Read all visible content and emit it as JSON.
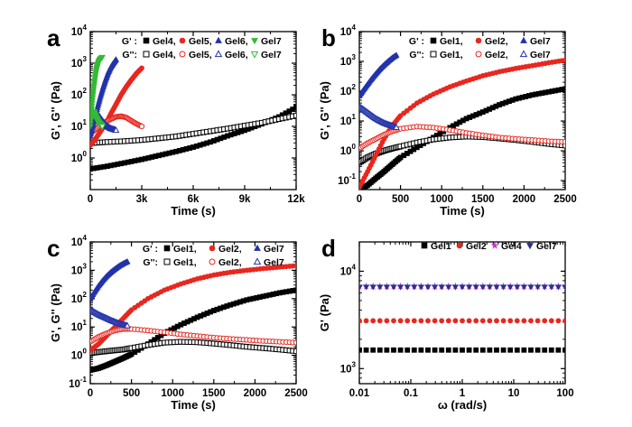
{
  "colors": {
    "black": "#000000",
    "red": "#e8271f",
    "blue": "#2233aa",
    "green": "#33bb33",
    "magenta": "#cc33cc",
    "navy": "#283090"
  },
  "chart_data": [
    {
      "id": "a",
      "type": "scatter",
      "panel_label": "a",
      "xlabel": "Time (s)",
      "ylabel": "G', G'' (Pa)",
      "xscale": "linear",
      "yscale": "log",
      "xlim": [
        0,
        12000
      ],
      "ylim": [
        0.1,
        10000
      ],
      "xticks": [
        {
          "v": 0,
          "label": "0"
        },
        {
          "v": 3000,
          "label": "3k"
        },
        {
          "v": 6000,
          "label": "6k"
        },
        {
          "v": 9000,
          "label": "9k"
        },
        {
          "v": 12000,
          "label": "12k"
        }
      ],
      "ytick_exponents": [
        0,
        1,
        2,
        3,
        4
      ],
      "legend_rows": [
        {
          "label": "G' :",
          "entries": [
            "Gel4,",
            "Gel5,",
            "Gel6,",
            "Gel7"
          ]
        },
        {
          "label": "G'':",
          "entries": [
            "Gel4,",
            "Gel5,",
            "Gel6,",
            "Gel7"
          ]
        }
      ],
      "series": [
        {
          "name": "Gel4",
          "modulus": "G'",
          "marker": "square",
          "filled": true,
          "color": "black",
          "x": [
            0,
            1000,
            2000,
            3000,
            4000,
            5000,
            6000,
            7000,
            8000,
            9000,
            10000,
            11000,
            12000
          ],
          "y": [
            0.45,
            0.55,
            0.7,
            0.9,
            1.2,
            1.6,
            2.2,
            3.2,
            5,
            7.5,
            12,
            20,
            40
          ]
        },
        {
          "name": "Gel4",
          "modulus": "G''",
          "marker": "square",
          "filled": false,
          "color": "black",
          "x": [
            200,
            1000,
            2000,
            3000,
            4000,
            5000,
            6000,
            7000,
            8000,
            9000,
            10000,
            11000,
            12000
          ],
          "y": [
            3.0,
            3.2,
            3.4,
            3.7,
            4.2,
            4.8,
            5.8,
            7,
            8.5,
            10.5,
            13,
            17,
            22
          ]
        },
        {
          "name": "Gel5",
          "modulus": "G'",
          "marker": "circle",
          "filled": true,
          "color": "red",
          "x": [
            0,
            300,
            600,
            900,
            1200,
            1500,
            1800,
            2100,
            2400,
            2700,
            3000
          ],
          "y": [
            2.5,
            4,
            7,
            12,
            25,
            50,
            100,
            180,
            300,
            480,
            700
          ]
        },
        {
          "name": "Gel5",
          "modulus": "G''",
          "marker": "circle",
          "filled": false,
          "color": "red",
          "x": [
            0,
            300,
            600,
            900,
            1200,
            1500,
            1800,
            2100,
            2400,
            2700,
            3000
          ],
          "y": [
            6,
            8,
            11,
            14,
            17,
            20,
            21,
            19,
            15,
            12,
            10
          ]
        },
        {
          "name": "Gel6",
          "modulus": "G'",
          "marker": "triangle-up",
          "filled": true,
          "color": "blue",
          "x": [
            0,
            150,
            300,
            450,
            600,
            750,
            900,
            1050,
            1200,
            1350,
            1500
          ],
          "y": [
            5,
            10,
            22,
            45,
            90,
            170,
            300,
            500,
            750,
            1000,
            1300
          ]
        },
        {
          "name": "Gel6",
          "modulus": "G''",
          "marker": "triangle-up",
          "filled": false,
          "color": "blue",
          "x": [
            0,
            150,
            300,
            450,
            600,
            750,
            900,
            1050,
            1200,
            1350,
            1500
          ],
          "y": [
            20,
            25,
            28,
            24,
            18,
            14,
            11,
            9.5,
            8.5,
            8,
            7.5
          ]
        },
        {
          "name": "Gel7",
          "modulus": "G'",
          "marker": "triangle-down",
          "filled": true,
          "color": "green",
          "x": [
            0,
            70,
            140,
            210,
            280,
            350,
            420,
            490,
            560,
            630,
            700
          ],
          "y": [
            10,
            30,
            80,
            180,
            350,
            600,
            850,
            1100,
            1300,
            1450,
            1550
          ]
        },
        {
          "name": "Gel7",
          "modulus": "G''",
          "marker": "triangle-down",
          "filled": false,
          "color": "green",
          "x": [
            0,
            70,
            140,
            210,
            280,
            350,
            420,
            490,
            560,
            630,
            700
          ],
          "y": [
            15,
            22,
            30,
            28,
            22,
            18,
            15,
            13,
            12,
            11,
            10
          ]
        }
      ]
    },
    {
      "id": "b",
      "type": "scatter",
      "panel_label": "b",
      "xlabel": "Time (s)",
      "ylabel": "G', G'' (Pa)",
      "xscale": "linear",
      "yscale": "log",
      "xlim": [
        0,
        2500
      ],
      "ylim": [
        0.05,
        10000
      ],
      "xticks": [
        {
          "v": 0,
          "label": "0"
        },
        {
          "v": 500,
          "label": "500"
        },
        {
          "v": 1000,
          "label": "1000"
        },
        {
          "v": 1500,
          "label": "1500"
        },
        {
          "v": 2000,
          "label": "2000"
        },
        {
          "v": 2500,
          "label": "2500"
        }
      ],
      "ytick_exponents": [
        -1,
        0,
        1,
        2,
        3,
        4
      ],
      "legend_rows": [
        {
          "label": "G' :",
          "entries": [
            "Gel1,",
            "Gel2,",
            "Gel7"
          ]
        },
        {
          "label": "G'':",
          "entries": [
            "Gel1,",
            "Gel2,",
            "Gel7"
          ]
        }
      ],
      "series": [
        {
          "name": "Gel1",
          "modulus": "G'",
          "marker": "square",
          "filled": true,
          "color": "black",
          "x": [
            0,
            100,
            200,
            300,
            400,
            500,
            700,
            900,
            1100,
            1300,
            1500,
            1700,
            1900,
            2100,
            2300,
            2500
          ],
          "y": [
            0.05,
            0.07,
            0.12,
            0.2,
            0.35,
            0.6,
            1.3,
            2.8,
            6,
            12,
            20,
            35,
            55,
            75,
            95,
            120
          ]
        },
        {
          "name": "Gel1",
          "modulus": "G''",
          "marker": "square",
          "filled": false,
          "color": "black",
          "x": [
            0,
            100,
            200,
            300,
            400,
            500,
            700,
            900,
            1100,
            1300,
            1500,
            1700,
            1900,
            2100,
            2300,
            2500
          ],
          "y": [
            0.4,
            0.6,
            0.8,
            1.0,
            1.2,
            1.4,
            1.9,
            2.4,
            2.8,
            3.0,
            2.9,
            2.6,
            2.3,
            2.0,
            1.7,
            1.5
          ]
        },
        {
          "name": "Gel2",
          "modulus": "G'",
          "marker": "circle",
          "filled": true,
          "color": "red",
          "x": [
            0,
            100,
            200,
            300,
            400,
            500,
            700,
            900,
            1100,
            1300,
            1500,
            1700,
            1900,
            2100,
            2300,
            2500
          ],
          "y": [
            0.06,
            0.2,
            0.7,
            2.5,
            7,
            15,
            40,
            80,
            140,
            220,
            330,
            450,
            580,
            720,
            900,
            1100
          ]
        },
        {
          "name": "Gel2",
          "modulus": "G''",
          "marker": "circle",
          "filled": false,
          "color": "red",
          "x": [
            0,
            100,
            200,
            300,
            400,
            500,
            700,
            900,
            1100,
            1300,
            1500,
            1700,
            1900,
            2100,
            2300,
            2500
          ],
          "y": [
            1.2,
            1.8,
            2.5,
            3.5,
            4.5,
            5.5,
            6.5,
            6.0,
            5.0,
            4.0,
            3.3,
            2.8,
            2.5,
            2.3,
            2.1,
            2.0
          ]
        },
        {
          "name": "Gel7",
          "modulus": "G'",
          "marker": "triangle-up",
          "filled": true,
          "color": "blue",
          "x": [
            0,
            50,
            100,
            150,
            200,
            250,
            300,
            350,
            400,
            450
          ],
          "y": [
            70,
            110,
            170,
            260,
            380,
            550,
            750,
            1000,
            1300,
            1600
          ]
        },
        {
          "name": "Gel7",
          "modulus": "G''",
          "marker": "triangle-up",
          "filled": false,
          "color": "blue",
          "x": [
            0,
            50,
            100,
            150,
            200,
            250,
            300,
            350,
            400,
            450
          ],
          "y": [
            30,
            24,
            19,
            15,
            12,
            10,
            8.5,
            7.5,
            6.8,
            6
          ]
        }
      ]
    },
    {
      "id": "c",
      "type": "scatter",
      "panel_label": "c",
      "xlabel": "Time (s)",
      "ylabel": "G', G'' (Pa)",
      "xscale": "linear",
      "yscale": "log",
      "xlim": [
        0,
        2500
      ],
      "ylim": [
        0.1,
        10000
      ],
      "xticks": [
        {
          "v": 0,
          "label": "0"
        },
        {
          "v": 500,
          "label": "500"
        },
        {
          "v": 1000,
          "label": "1000"
        },
        {
          "v": 1500,
          "label": "1500"
        },
        {
          "v": 2000,
          "label": "2000"
        },
        {
          "v": 2500,
          "label": "2500"
        }
      ],
      "ytick_exponents": [
        -1,
        0,
        1,
        2,
        3,
        4
      ],
      "legend_rows": [
        {
          "label": "G' :",
          "entries": [
            "Gel1,",
            "Gel2,",
            "Gel7"
          ]
        },
        {
          "label": "G'':",
          "entries": [
            "Gel1,",
            "Gel2,",
            "Gel7"
          ]
        }
      ],
      "series": [
        {
          "name": "Gel1",
          "modulus": "G'",
          "marker": "square",
          "filled": true,
          "color": "black",
          "x": [
            0,
            100,
            200,
            300,
            400,
            500,
            700,
            900,
            1100,
            1300,
            1500,
            1700,
            1900,
            2100,
            2300,
            2500
          ],
          "y": [
            0.3,
            0.35,
            0.45,
            0.6,
            0.8,
            1.1,
            2.5,
            6,
            12,
            22,
            38,
            60,
            90,
            120,
            160,
            200
          ]
        },
        {
          "name": "Gel1",
          "modulus": "G''",
          "marker": "square",
          "filled": false,
          "color": "black",
          "x": [
            0,
            100,
            200,
            300,
            400,
            500,
            700,
            900,
            1100,
            1300,
            1500,
            1700,
            1900,
            2100,
            2300,
            2500
          ],
          "y": [
            1.2,
            1.3,
            1.4,
            1.5,
            1.6,
            1.8,
            2.3,
            2.8,
            3.0,
            2.9,
            2.6,
            2.3,
            2.0,
            1.8,
            1.6,
            1.4
          ]
        },
        {
          "name": "Gel2",
          "modulus": "G'",
          "marker": "circle",
          "filled": true,
          "color": "red",
          "x": [
            0,
            100,
            200,
            300,
            400,
            500,
            700,
            900,
            1100,
            1300,
            1500,
            1700,
            1900,
            2100,
            2300,
            2500
          ],
          "y": [
            1.5,
            2.5,
            5,
            10,
            20,
            40,
            100,
            200,
            330,
            500,
            680,
            850,
            1000,
            1150,
            1300,
            1450
          ]
        },
        {
          "name": "Gel2",
          "modulus": "G''",
          "marker": "circle",
          "filled": false,
          "color": "red",
          "x": [
            0,
            100,
            200,
            300,
            400,
            500,
            700,
            900,
            1100,
            1300,
            1500,
            1700,
            1900,
            2100,
            2300,
            2500
          ],
          "y": [
            3,
            4.5,
            6,
            7.5,
            8.5,
            8.5,
            7.5,
            6.5,
            5.5,
            4.8,
            4.2,
            3.8,
            3.5,
            3.2,
            3.0,
            2.8
          ]
        },
        {
          "name": "Gel7",
          "modulus": "G'",
          "marker": "triangle-up",
          "filled": true,
          "color": "blue",
          "x": [
            0,
            50,
            100,
            150,
            200,
            250,
            300,
            350,
            400,
            450
          ],
          "y": [
            100,
            170,
            280,
            430,
            620,
            850,
            1100,
            1400,
            1700,
            2000
          ]
        },
        {
          "name": "Gel7",
          "modulus": "G''",
          "marker": "triangle-up",
          "filled": false,
          "color": "blue",
          "x": [
            0,
            50,
            100,
            150,
            200,
            250,
            300,
            350,
            400,
            450
          ],
          "y": [
            40,
            33,
            27,
            23,
            20,
            17,
            15,
            13,
            12,
            11
          ]
        }
      ]
    },
    {
      "id": "d",
      "type": "scatter",
      "panel_label": "d",
      "xlabel": "ω (rad/s)",
      "ylabel": "G' (Pa)",
      "xscale": "log",
      "yscale": "log",
      "xlim": [
        0.01,
        100
      ],
      "ylim": [
        700,
        20000
      ],
      "xticks": [
        {
          "v": 0.01,
          "label": "0.01"
        },
        {
          "v": 0.1,
          "label": "0.1"
        },
        {
          "v": 1,
          "label": "1"
        },
        {
          "v": 10,
          "label": "10"
        },
        {
          "v": 100,
          "label": "100"
        }
      ],
      "ytick_exponents": [
        3,
        4
      ],
      "legend_rows": [
        {
          "label": "",
          "entries": [
            "Gel1",
            "Gel2",
            "Gel4",
            "Gel7"
          ]
        }
      ],
      "series": [
        {
          "name": "Gel1",
          "marker": "square",
          "filled": true,
          "color": "black",
          "constant": 1550
        },
        {
          "name": "Gel2",
          "marker": "circle",
          "filled": true,
          "color": "red",
          "constant": 3100
        },
        {
          "name": "Gel4",
          "marker": "star",
          "filled": true,
          "color": "magenta",
          "constant": 7000
        },
        {
          "name": "Gel7",
          "marker": "triangle-down",
          "filled": true,
          "color": "navy",
          "constant": 6900
        }
      ]
    }
  ]
}
